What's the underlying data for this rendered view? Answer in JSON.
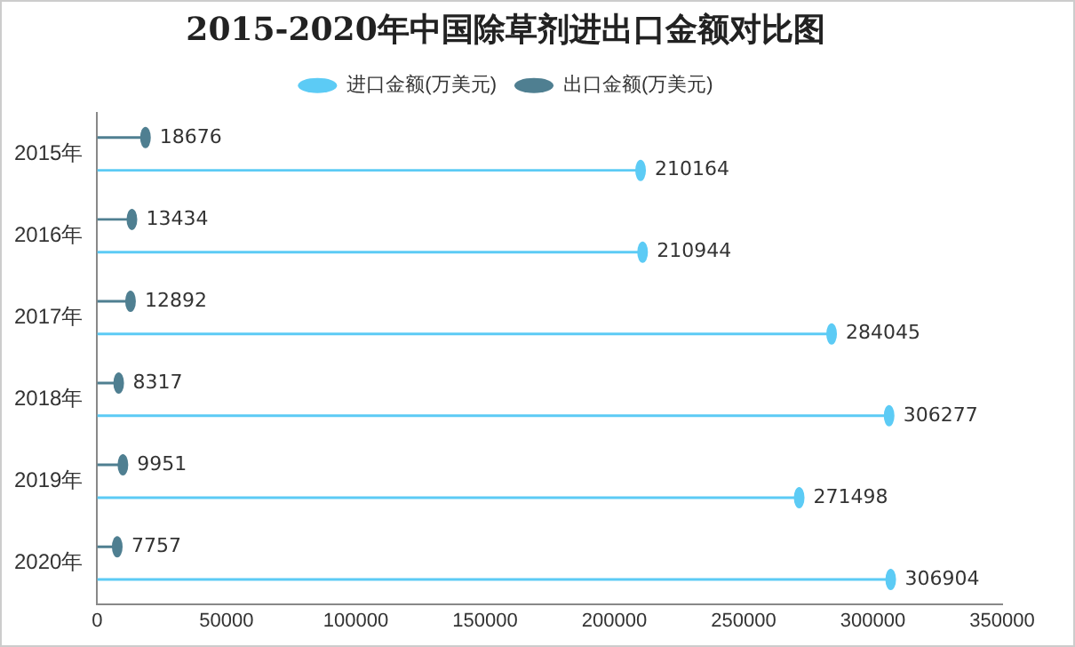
{
  "chart_data": {
    "type": "lollipop",
    "orientation": "horizontal",
    "title": "2015-2020年中国除草剂进出口金额对比图",
    "categories": [
      "2015年",
      "2016年",
      "2017年",
      "2018年",
      "2019年",
      "2020年"
    ],
    "series": [
      {
        "name": "进口金额(万美元)",
        "color": "#5ccbf5",
        "values": [
          210164,
          210944,
          284045,
          306277,
          271498,
          306904
        ]
      },
      {
        "name": "出口金额(万美元)",
        "color": "#4f7f91",
        "values": [
          18676,
          13434,
          12892,
          8317,
          9951,
          7757
        ]
      }
    ],
    "xlim": [
      0,
      350000
    ],
    "xticks": [
      0,
      50000,
      100000,
      150000,
      200000,
      250000,
      300000,
      350000
    ],
    "grid": false,
    "legend": "top",
    "data_labels": true,
    "marker": "circle"
  }
}
